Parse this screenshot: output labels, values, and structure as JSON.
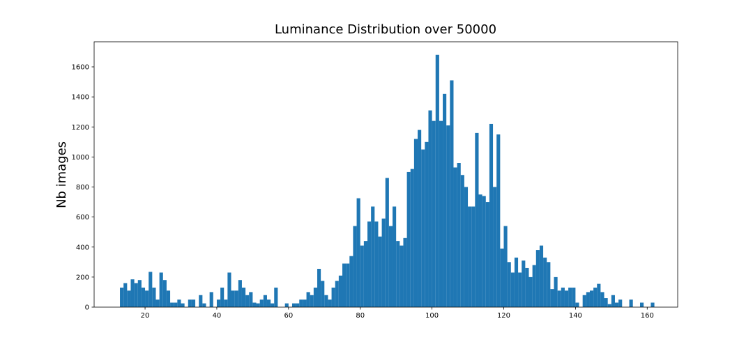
{
  "chart_data": {
    "type": "histogram",
    "title": "Luminance Distribution over 50000",
    "ylabel": "Nb images",
    "color": "#1f77b4",
    "bins": [
      13,
      14,
      15,
      16,
      17,
      18,
      19,
      20,
      21,
      22,
      23,
      24,
      25,
      26,
      27,
      28,
      29,
      30,
      31,
      32,
      33,
      34,
      35,
      36,
      37,
      38,
      39,
      40,
      41,
      42,
      43,
      44,
      45,
      46,
      47,
      48,
      49,
      50,
      51,
      52,
      53,
      54,
      55,
      56,
      57,
      58,
      59,
      60,
      61,
      62,
      63,
      64,
      65,
      66,
      67,
      68,
      69,
      70,
      71,
      72,
      73,
      74,
      75,
      76,
      77,
      78,
      79,
      80,
      81,
      82,
      83,
      84,
      85,
      86,
      87,
      88,
      89,
      90,
      91,
      92,
      93,
      94,
      95,
      96,
      97,
      98,
      99,
      100,
      101,
      102,
      103,
      104,
      105,
      106,
      107,
      108,
      109,
      110,
      111,
      112,
      113,
      114,
      115,
      116,
      117,
      118,
      119,
      120,
      121,
      122,
      123,
      124,
      125,
      126,
      127,
      128,
      129,
      130,
      131,
      132,
      133,
      134,
      135,
      136,
      137,
      138,
      139,
      140,
      141,
      142,
      143,
      144,
      145,
      146,
      147,
      148,
      149,
      150,
      151,
      152,
      153,
      154,
      155,
      156,
      157,
      158,
      159,
      160,
      161,
      162
    ],
    "values": [
      130,
      160,
      110,
      185,
      160,
      180,
      130,
      110,
      235,
      130,
      50,
      230,
      180,
      110,
      30,
      30,
      50,
      25,
      0,
      50,
      50,
      0,
      80,
      25,
      0,
      100,
      0,
      50,
      130,
      50,
      230,
      110,
      110,
      180,
      130,
      80,
      100,
      30,
      25,
      50,
      80,
      50,
      25,
      130,
      0,
      0,
      25,
      0,
      25,
      25,
      50,
      50,
      100,
      80,
      130,
      255,
      175,
      80,
      50,
      130,
      175,
      210,
      290,
      290,
      340,
      540,
      725,
      410,
      440,
      570,
      670,
      570,
      470,
      590,
      860,
      540,
      670,
      440,
      410,
      460,
      900,
      920,
      1120,
      1180,
      1050,
      1100,
      1310,
      1240,
      1680,
      1240,
      1420,
      1210,
      1510,
      930,
      960,
      880,
      800,
      670,
      670,
      1160,
      750,
      740,
      700,
      1220,
      800,
      1150,
      390,
      540,
      300,
      230,
      330,
      230,
      310,
      260,
      200,
      280,
      380,
      410,
      330,
      300,
      120,
      200,
      110,
      130,
      110,
      130,
      130,
      30,
      0,
      80,
      100,
      110,
      130,
      155,
      100,
      60,
      20,
      80,
      30,
      50,
      0,
      0,
      50,
      0,
      0,
      30,
      0,
      0,
      30
    ],
    "xlim": [
      5.8,
      168.5
    ],
    "ylim": [
      0,
      1767
    ],
    "xticks": [
      20,
      40,
      60,
      80,
      100,
      120,
      140,
      160
    ],
    "yticks": [
      0,
      200,
      400,
      600,
      800,
      1000,
      1200,
      1400,
      1600
    ]
  }
}
